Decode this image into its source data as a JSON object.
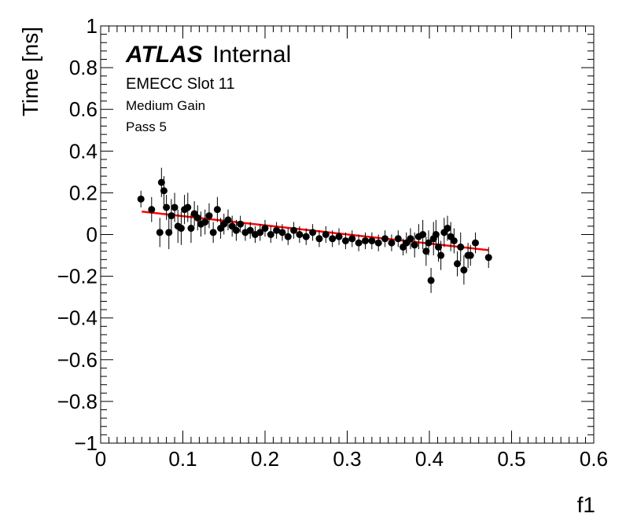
{
  "chart_data": {
    "type": "scatter",
    "xlabel": "f1",
    "ylabel": "Time [ns]",
    "xlim": [
      0,
      0.6
    ],
    "ylim": [
      -1,
      1
    ],
    "xticks": [
      "0",
      "0.1",
      "0.2",
      "0.3",
      "0.4",
      "0.5",
      "0.6"
    ],
    "yticks": [
      "−1",
      "−0.8",
      "−0.6",
      "−0.4",
      "−0.2",
      "0",
      "0.2",
      "0.4",
      "0.6",
      "0.8",
      "1"
    ],
    "experiment_label": "ATLAS",
    "status_label": "Internal",
    "annotations": [
      "EMECC Slot 11",
      "Medium Gain",
      "Pass 5"
    ],
    "fit_line": {
      "color": "#ff0000",
      "x": [
        0.05,
        0.472
      ],
      "y": [
        0.11,
        -0.075
      ]
    },
    "marker_color": "#000000",
    "series": [
      {
        "x": [
          0.049,
          0.062,
          0.072,
          0.074,
          0.077,
          0.08,
          0.083,
          0.086,
          0.09,
          0.094,
          0.098,
          0.102,
          0.106,
          0.11,
          0.114,
          0.118,
          0.122,
          0.127,
          0.132,
          0.137,
          0.142,
          0.146,
          0.15,
          0.155,
          0.16,
          0.165,
          0.17,
          0.176,
          0.182,
          0.188,
          0.194,
          0.2,
          0.207,
          0.214,
          0.221,
          0.228,
          0.235,
          0.242,
          0.25,
          0.258,
          0.266,
          0.274,
          0.282,
          0.29,
          0.298,
          0.306,
          0.314,
          0.322,
          0.33,
          0.338,
          0.346,
          0.354,
          0.362,
          0.368,
          0.372,
          0.377,
          0.382,
          0.387,
          0.392,
          0.396,
          0.399,
          0.402,
          0.405,
          0.408,
          0.411,
          0.414,
          0.418,
          0.422,
          0.426,
          0.43,
          0.434,
          0.438,
          0.442,
          0.447,
          0.45,
          0.456,
          0.472
        ],
        "y": [
          0.17,
          0.12,
          0.01,
          0.25,
          0.21,
          0.13,
          0.01,
          0.09,
          0.13,
          0.04,
          0.03,
          0.12,
          0.13,
          0.03,
          0.1,
          0.08,
          0.05,
          0.06,
          0.09,
          0.01,
          0.12,
          0.03,
          0.05,
          0.07,
          0.04,
          0.02,
          0.05,
          0.01,
          0.02,
          0.0,
          0.01,
          0.03,
          0.0,
          0.02,
          0.01,
          -0.01,
          0.02,
          0.0,
          -0.01,
          0.01,
          -0.02,
          0.0,
          -0.02,
          -0.01,
          -0.03,
          -0.02,
          -0.04,
          -0.03,
          -0.03,
          -0.04,
          -0.02,
          -0.04,
          -0.02,
          -0.06,
          -0.04,
          -0.02,
          -0.05,
          -0.01,
          0.0,
          -0.08,
          -0.04,
          -0.22,
          -0.02,
          0.0,
          -0.06,
          -0.1,
          0.01,
          0.03,
          -0.01,
          -0.03,
          -0.14,
          -0.06,
          -0.17,
          -0.1,
          -0.1,
          -0.04,
          -0.11
        ],
        "yerr": [
          0.04,
          0.06,
          0.07,
          0.07,
          0.07,
          0.06,
          0.08,
          0.08,
          0.07,
          0.08,
          0.08,
          0.07,
          0.07,
          0.07,
          0.06,
          0.06,
          0.06,
          0.06,
          0.06,
          0.05,
          0.06,
          0.05,
          0.05,
          0.05,
          0.05,
          0.05,
          0.04,
          0.04,
          0.04,
          0.04,
          0.04,
          0.04,
          0.04,
          0.04,
          0.04,
          0.04,
          0.04,
          0.04,
          0.04,
          0.04,
          0.04,
          0.04,
          0.04,
          0.04,
          0.04,
          0.04,
          0.04,
          0.04,
          0.04,
          0.04,
          0.04,
          0.04,
          0.04,
          0.04,
          0.05,
          0.05,
          0.06,
          0.06,
          0.07,
          0.07,
          0.06,
          0.06,
          0.08,
          0.07,
          0.07,
          0.07,
          0.07,
          0.06,
          0.07,
          0.06,
          0.06,
          0.07,
          0.07,
          0.06,
          0.05,
          0.05,
          0.05
        ]
      }
    ]
  }
}
